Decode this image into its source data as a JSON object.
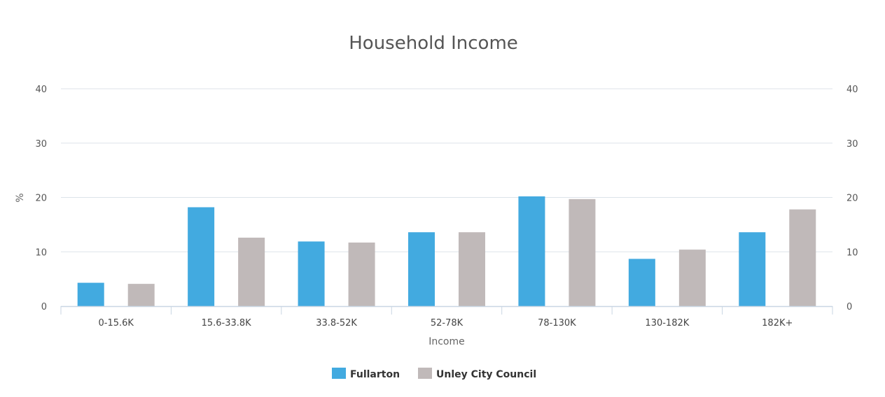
{
  "chart_data": {
    "type": "bar",
    "title": "Household Income",
    "xlabel": "Income",
    "ylabel": "%",
    "ylim": [
      0,
      40
    ],
    "yticks": [
      0,
      10,
      20,
      30,
      40
    ],
    "grid": true,
    "legend_position": "bottom",
    "categories": [
      "0-15.6K",
      "15.6-33.8K",
      "33.8-52K",
      "52-78K",
      "78-130K",
      "130-182K",
      "182K+"
    ],
    "series": [
      {
        "name": "Fullarton",
        "color": "#42aae0",
        "values": [
          4.3,
          18.2,
          11.9,
          13.6,
          20.2,
          8.7,
          13.6
        ]
      },
      {
        "name": "Unley City Council",
        "color": "#c0b9b9",
        "values": [
          4.1,
          12.6,
          11.7,
          13.6,
          19.7,
          10.4,
          17.8
        ]
      }
    ]
  }
}
